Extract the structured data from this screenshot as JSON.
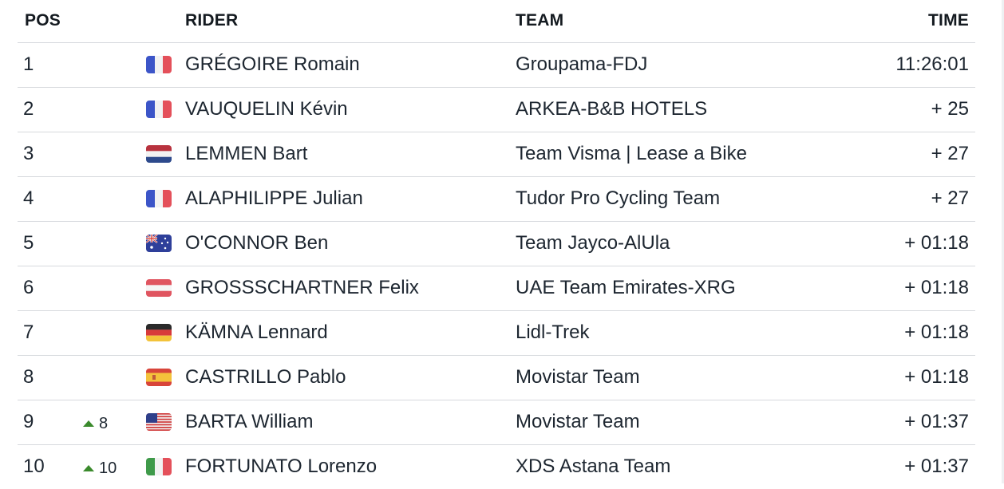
{
  "headers": {
    "pos": "POS",
    "rider": "RIDER",
    "team": "TEAM",
    "time": "TIME"
  },
  "colors": {
    "up_arrow": "#3a8a2c",
    "divider": "#d6d9dd"
  },
  "rows": [
    {
      "pos": "1",
      "move": "",
      "flag": "france",
      "rider": "GRÉGOIRE Romain",
      "team": "Groupama-FDJ",
      "time": "11:26:01"
    },
    {
      "pos": "2",
      "move": "",
      "flag": "france",
      "rider": "VAUQUELIN Kévin",
      "team": "ARKEA-B&B HOTELS",
      "time": "+ 25"
    },
    {
      "pos": "3",
      "move": "",
      "flag": "netherlands",
      "rider": "LEMMEN Bart",
      "team": "Team Visma | Lease a Bike",
      "time": "+ 27"
    },
    {
      "pos": "4",
      "move": "",
      "flag": "france",
      "rider": "ALAPHILIPPE Julian",
      "team": "Tudor Pro Cycling Team",
      "time": "+ 27"
    },
    {
      "pos": "5",
      "move": "",
      "flag": "australia",
      "rider": "O'CONNOR Ben",
      "team": "Team Jayco-AlUla",
      "time": "+ 01:18"
    },
    {
      "pos": "6",
      "move": "",
      "flag": "austria",
      "rider": "GROSSSCHARTNER Felix",
      "team": "UAE Team Emirates-XRG",
      "time": "+ 01:18"
    },
    {
      "pos": "7",
      "move": "",
      "flag": "germany",
      "rider": "KÄMNA Lennard",
      "team": "Lidl-Trek",
      "time": "+ 01:18"
    },
    {
      "pos": "8",
      "move": "",
      "flag": "spain",
      "rider": "CASTRILLO Pablo",
      "team": "Movistar Team",
      "time": "+ 01:18"
    },
    {
      "pos": "9",
      "move": "8",
      "flag": "usa",
      "rider": "BARTA William",
      "team": "Movistar Team",
      "time": "+ 01:37"
    },
    {
      "pos": "10",
      "move": "10",
      "flag": "italy",
      "rider": "FORTUNATO Lorenzo",
      "team": "XDS Astana Team",
      "time": "+ 01:37"
    }
  ]
}
